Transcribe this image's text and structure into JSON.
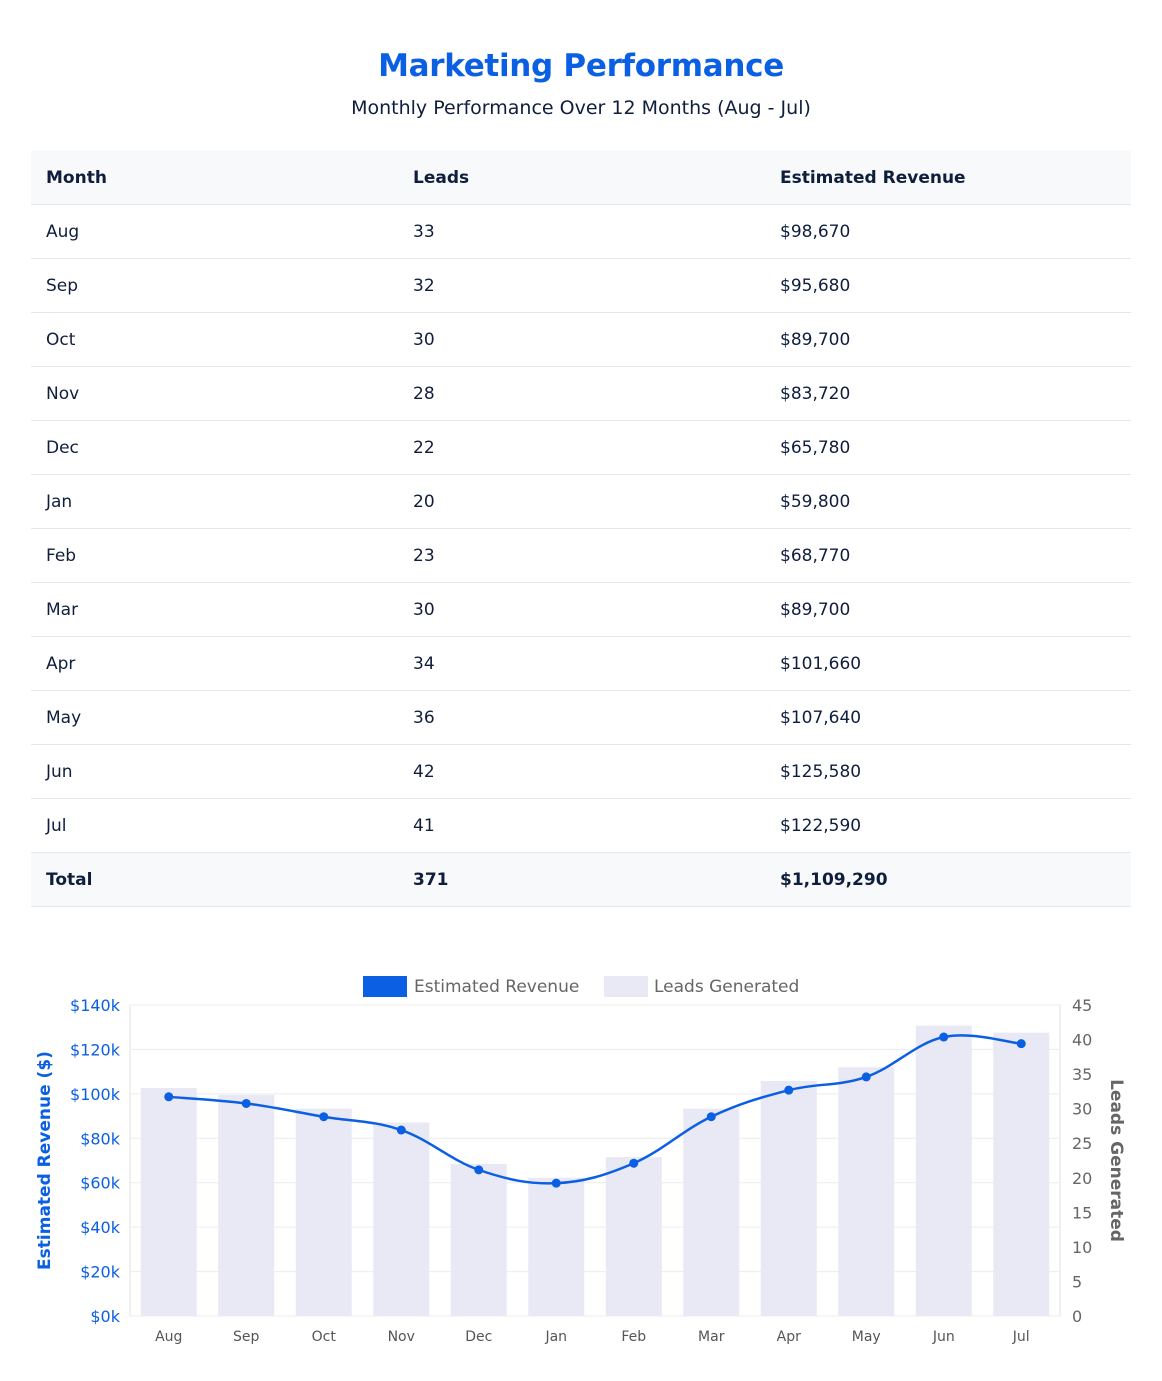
{
  "header": {
    "title": "Marketing Performance",
    "subtitle": "Monthly Performance Over 12 Months (Aug - Jul)"
  },
  "table": {
    "columns": [
      "Month",
      "Leads",
      "Estimated Revenue"
    ],
    "rows": [
      [
        "Aug",
        "33",
        "$98,670"
      ],
      [
        "Sep",
        "32",
        "$95,680"
      ],
      [
        "Oct",
        "30",
        "$89,700"
      ],
      [
        "Nov",
        "28",
        "$83,720"
      ],
      [
        "Dec",
        "22",
        "$65,780"
      ],
      [
        "Jan",
        "20",
        "$59,800"
      ],
      [
        "Feb",
        "23",
        "$68,770"
      ],
      [
        "Mar",
        "30",
        "$89,700"
      ],
      [
        "Apr",
        "34",
        "$101,660"
      ],
      [
        "May",
        "36",
        "$107,640"
      ],
      [
        "Jun",
        "42",
        "$125,580"
      ],
      [
        "Jul",
        "41",
        "$122,590"
      ]
    ],
    "total": [
      "Total",
      "371",
      "$1,109,290"
    ]
  },
  "chart_data": {
    "type": "bar",
    "categories": [
      "Aug",
      "Sep",
      "Oct",
      "Nov",
      "Dec",
      "Jan",
      "Feb",
      "Mar",
      "Apr",
      "May",
      "Jun",
      "Jul"
    ],
    "series": [
      {
        "name": "Estimated Revenue",
        "type": "line",
        "axis": "left",
        "color": "#0b5fe3",
        "values": [
          98670,
          95680,
          89700,
          83720,
          65780,
          59800,
          68770,
          89700,
          101660,
          107640,
          125580,
          122590
        ]
      },
      {
        "name": "Leads Generated",
        "type": "bar",
        "axis": "right",
        "color": "#e8e9f4",
        "values": [
          33,
          32,
          30,
          28,
          22,
          20,
          23,
          30,
          34,
          36,
          42,
          41
        ]
      }
    ],
    "y_left": {
      "label": "Estimated Revenue ($)",
      "range": [
        0,
        140000
      ],
      "ticks": [
        "$0k",
        "$20k",
        "$40k",
        "$60k",
        "$80k",
        "$100k",
        "$120k",
        "$140k"
      ],
      "color": "#0b5fe3"
    },
    "y_right": {
      "label": "Leads Generated",
      "range": [
        0,
        45
      ],
      "ticks": [
        "0",
        "5",
        "10",
        "15",
        "20",
        "25",
        "30",
        "35",
        "40",
        "45"
      ],
      "color": "#666666"
    },
    "grid": true,
    "legend": "top-center"
  }
}
